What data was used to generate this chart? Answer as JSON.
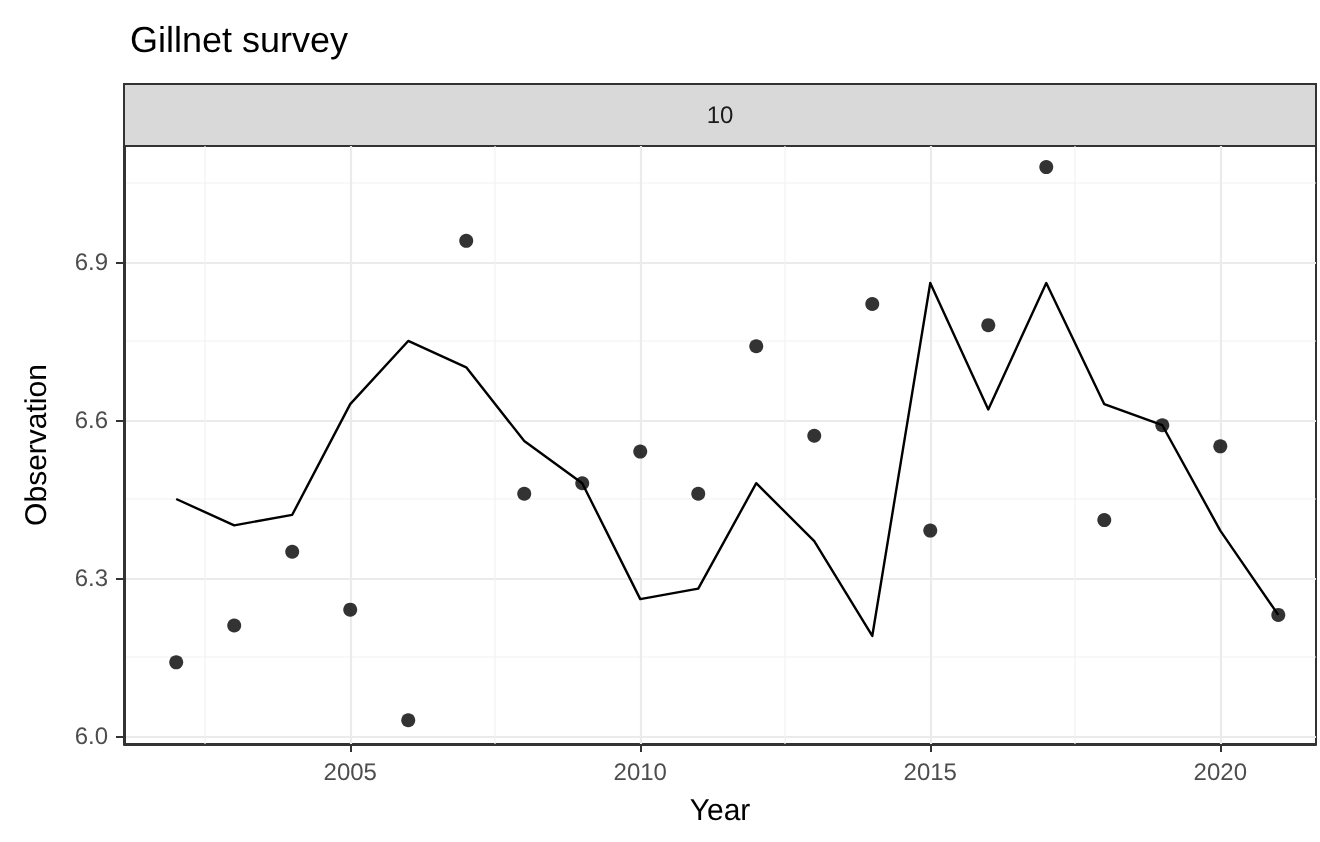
{
  "chart_data": {
    "type": "scatter",
    "title": "Gillnet survey",
    "annotations": [
      "10"
    ],
    "xlabel": "Year",
    "ylabel": "Observation",
    "x": [
      2002,
      2003,
      2004,
      2005,
      2006,
      2007,
      2008,
      2009,
      2010,
      2011,
      2012,
      2013,
      2014,
      2015,
      2016,
      2017,
      2018,
      2019,
      2020,
      2021
    ],
    "series": [
      {
        "color": "#000000",
        "marker": "circle",
        "values": [
          6.14,
          6.21,
          6.35,
          6.24,
          6.03,
          6.94,
          6.46,
          6.48,
          6.54,
          6.46,
          6.74,
          6.57,
          6.82,
          6.39,
          6.78,
          7.08,
          6.41,
          6.59,
          6.55,
          6.23
        ]
      },
      {
        "type": "line",
        "color": "#000000",
        "marker": "none",
        "line_style": "solid",
        "values": [
          6.45,
          6.4,
          6.42,
          6.63,
          6.75,
          6.7,
          6.56,
          6.48,
          6.26,
          6.28,
          6.48,
          6.37,
          6.19,
          6.86,
          6.62,
          6.86,
          6.63,
          6.59,
          6.39,
          6.23
        ]
      }
    ],
    "xlim": [
      2001.1,
      2021.65
    ],
    "xticks": [
      2005,
      2010,
      2015,
      2020
    ],
    "ylim": [
      5.985,
      7.12
    ],
    "yticks": [
      {
        "value": 6,
        "label": "6.0"
      },
      6.3,
      6.6,
      6.9
    ],
    "grid": true
  }
}
